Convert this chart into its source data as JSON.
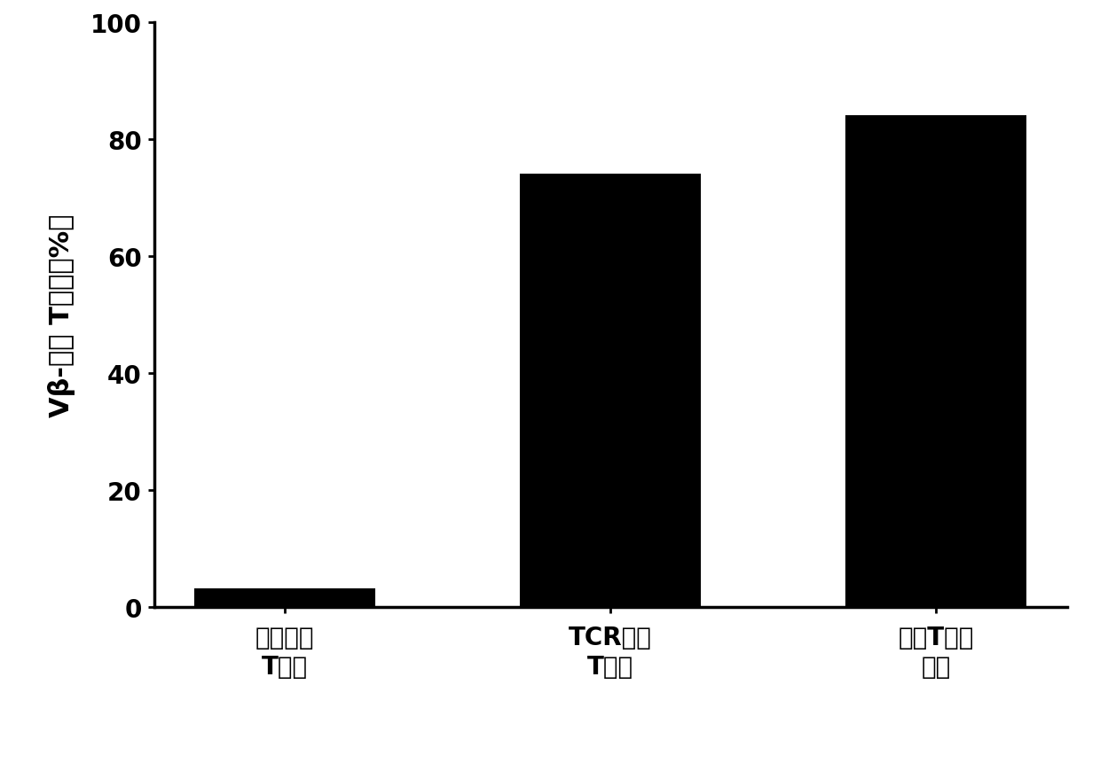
{
  "categories": [
    "模拟转染\nT细胞",
    "TCR转染\nT细胞",
    "患者T细胞\n克隆"
  ],
  "values": [
    3.0,
    74.0,
    84.0
  ],
  "bar_color": "#000000",
  "bar_width": 0.55,
  "ylim": [
    0,
    100
  ],
  "yticks": [
    0,
    20,
    40,
    60,
    80,
    100
  ],
  "ylabel": "Vβ-阳性 T细胞（%）",
  "ylabel_fontsize": 22,
  "tick_fontsize": 20,
  "xlabel_fontsize": 20,
  "background_color": "#ffffff",
  "bar_edge_color": "#000000"
}
